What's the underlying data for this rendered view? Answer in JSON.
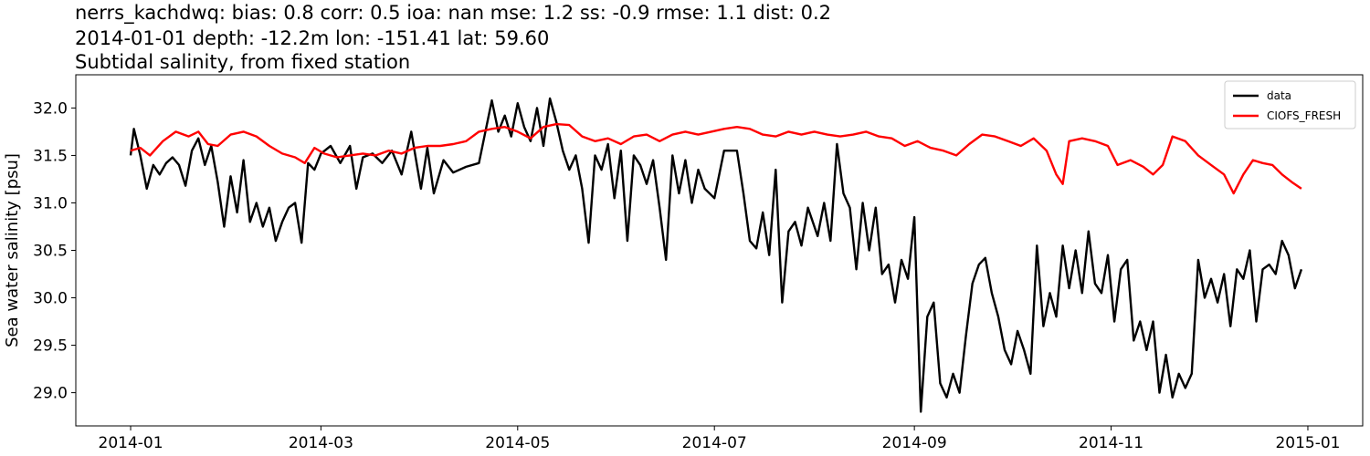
{
  "titles": {
    "line1": "nerrs_kachdwq: bias: 0.8  corr: 0.5  ioa: nan  mse: 1.2  ss: -0.9  rmse: 1.1  dist: 0.2",
    "line2": "2014-01-01 depth: -12.2m lon: -151.41 lat: 59.60",
    "line3": "Subtidal salinity, from fixed station"
  },
  "chart_data": {
    "type": "line",
    "title": "nerrs_kachdwq: bias: 0.8  corr: 0.5  ioa: nan  mse: 1.2  ss: -0.9  rmse: 1.1  dist: 0.2 / 2014-01-01 depth: -12.2m lon: -151.41 lat: 59.60 / Subtidal salinity, from fixed station",
    "xlabel": "",
    "ylabel": "Sea water salinity [psu]",
    "xlim": [
      "2013-12-15",
      "2015-01-18"
    ],
    "ylim": [
      28.65,
      32.35
    ],
    "x_ticks": [
      "2014-01",
      "2014-03",
      "2014-05",
      "2014-07",
      "2014-09",
      "2014-11",
      "2015-01"
    ],
    "y_ticks": [
      "29.0",
      "29.5",
      "30.0",
      "30.5",
      "31.0",
      "31.5",
      "32.0"
    ],
    "y_tick_values": [
      29.0,
      29.5,
      30.0,
      30.5,
      31.0,
      31.5,
      32.0
    ],
    "grid": false,
    "legend_position": "top-right",
    "series": [
      {
        "name": "data",
        "color": "#000000",
        "points": [
          [
            "2014-01-01",
            31.5
          ],
          [
            "2014-01-02",
            31.78
          ],
          [
            "2014-01-04",
            31.5
          ],
          [
            "2014-01-06",
            31.15
          ],
          [
            "2014-01-08",
            31.4
          ],
          [
            "2014-01-10",
            31.3
          ],
          [
            "2014-01-12",
            31.42
          ],
          [
            "2014-01-14",
            31.48
          ],
          [
            "2014-01-16",
            31.4
          ],
          [
            "2014-01-18",
            31.18
          ],
          [
            "2014-01-20",
            31.55
          ],
          [
            "2014-01-22",
            31.68
          ],
          [
            "2014-01-24",
            31.4
          ],
          [
            "2014-01-26",
            31.6
          ],
          [
            "2014-01-28",
            31.22
          ],
          [
            "2014-01-30",
            30.75
          ],
          [
            "2014-02-01",
            31.28
          ],
          [
            "2014-02-03",
            30.9
          ],
          [
            "2014-02-05",
            31.45
          ],
          [
            "2014-02-07",
            30.8
          ],
          [
            "2014-02-09",
            31.0
          ],
          [
            "2014-02-11",
            30.75
          ],
          [
            "2014-02-13",
            30.95
          ],
          [
            "2014-02-15",
            30.6
          ],
          [
            "2014-02-17",
            30.8
          ],
          [
            "2014-02-19",
            30.95
          ],
          [
            "2014-02-21",
            31.0
          ],
          [
            "2014-02-23",
            30.58
          ],
          [
            "2014-02-25",
            31.42
          ],
          [
            "2014-02-27",
            31.35
          ],
          [
            "2014-03-01",
            31.52
          ],
          [
            "2014-03-04",
            31.6
          ],
          [
            "2014-03-07",
            31.42
          ],
          [
            "2014-03-10",
            31.6
          ],
          [
            "2014-03-12",
            31.15
          ],
          [
            "2014-03-14",
            31.48
          ],
          [
            "2014-03-17",
            31.52
          ],
          [
            "2014-03-20",
            31.42
          ],
          [
            "2014-03-23",
            31.55
          ],
          [
            "2014-03-26",
            31.3
          ],
          [
            "2014-03-29",
            31.75
          ],
          [
            "2014-04-01",
            31.15
          ],
          [
            "2014-04-03",
            31.58
          ],
          [
            "2014-04-05",
            31.1
          ],
          [
            "2014-04-08",
            31.45
          ],
          [
            "2014-04-11",
            31.32
          ],
          [
            "2014-04-15",
            31.38
          ],
          [
            "2014-04-19",
            31.42
          ],
          [
            "2014-04-23",
            32.08
          ],
          [
            "2014-04-25",
            31.75
          ],
          [
            "2014-04-27",
            31.92
          ],
          [
            "2014-04-29",
            31.7
          ],
          [
            "2014-05-01",
            32.05
          ],
          [
            "2014-05-03",
            31.8
          ],
          [
            "2014-05-05",
            31.65
          ],
          [
            "2014-05-07",
            32.0
          ],
          [
            "2014-05-09",
            31.6
          ],
          [
            "2014-05-11",
            32.1
          ],
          [
            "2014-05-13",
            31.85
          ],
          [
            "2014-05-15",
            31.55
          ],
          [
            "2014-05-17",
            31.35
          ],
          [
            "2014-05-19",
            31.5
          ],
          [
            "2014-05-21",
            31.15
          ],
          [
            "2014-05-23",
            30.58
          ],
          [
            "2014-05-25",
            31.5
          ],
          [
            "2014-05-27",
            31.35
          ],
          [
            "2014-05-29",
            31.62
          ],
          [
            "2014-05-31",
            31.05
          ],
          [
            "2014-06-02",
            31.55
          ],
          [
            "2014-06-04",
            30.6
          ],
          [
            "2014-06-06",
            31.5
          ],
          [
            "2014-06-08",
            31.4
          ],
          [
            "2014-06-10",
            31.2
          ],
          [
            "2014-06-12",
            31.45
          ],
          [
            "2014-06-14",
            30.95
          ],
          [
            "2014-06-16",
            30.4
          ],
          [
            "2014-06-18",
            31.5
          ],
          [
            "2014-06-20",
            31.1
          ],
          [
            "2014-06-22",
            31.45
          ],
          [
            "2014-06-24",
            31.0
          ],
          [
            "2014-06-26",
            31.35
          ],
          [
            "2014-06-28",
            31.15
          ],
          [
            "2014-07-01",
            31.05
          ],
          [
            "2014-07-04",
            31.55
          ],
          [
            "2014-07-08",
            31.55
          ],
          [
            "2014-07-10",
            31.1
          ],
          [
            "2014-07-12",
            30.6
          ],
          [
            "2014-07-14",
            30.52
          ],
          [
            "2014-07-16",
            30.9
          ],
          [
            "2014-07-18",
            30.45
          ],
          [
            "2014-07-20",
            31.35
          ],
          [
            "2014-07-22",
            29.95
          ],
          [
            "2014-07-24",
            30.7
          ],
          [
            "2014-07-26",
            30.8
          ],
          [
            "2014-07-28",
            30.55
          ],
          [
            "2014-07-30",
            30.95
          ],
          [
            "2014-08-02",
            30.65
          ],
          [
            "2014-08-04",
            31.0
          ],
          [
            "2014-08-06",
            30.6
          ],
          [
            "2014-08-08",
            31.62
          ],
          [
            "2014-08-10",
            31.1
          ],
          [
            "2014-08-12",
            30.95
          ],
          [
            "2014-08-14",
            30.3
          ],
          [
            "2014-08-16",
            31.0
          ],
          [
            "2014-08-18",
            30.5
          ],
          [
            "2014-08-20",
            30.95
          ],
          [
            "2014-08-22",
            30.25
          ],
          [
            "2014-08-24",
            30.35
          ],
          [
            "2014-08-26",
            29.95
          ],
          [
            "2014-08-28",
            30.4
          ],
          [
            "2014-08-30",
            30.2
          ],
          [
            "2014-09-01",
            30.85
          ],
          [
            "2014-09-03",
            28.8
          ],
          [
            "2014-09-05",
            29.8
          ],
          [
            "2014-09-07",
            29.95
          ],
          [
            "2014-09-09",
            29.1
          ],
          [
            "2014-09-11",
            28.95
          ],
          [
            "2014-09-13",
            29.2
          ],
          [
            "2014-09-15",
            29.0
          ],
          [
            "2014-09-17",
            29.6
          ],
          [
            "2014-09-19",
            30.15
          ],
          [
            "2014-09-21",
            30.35
          ],
          [
            "2014-09-23",
            30.42
          ],
          [
            "2014-09-25",
            30.05
          ],
          [
            "2014-09-27",
            29.8
          ],
          [
            "2014-09-29",
            29.45
          ],
          [
            "2014-10-01",
            29.3
          ],
          [
            "2014-10-03",
            29.65
          ],
          [
            "2014-10-05",
            29.45
          ],
          [
            "2014-10-07",
            29.2
          ],
          [
            "2014-10-09",
            30.55
          ],
          [
            "2014-10-11",
            29.7
          ],
          [
            "2014-10-13",
            30.05
          ],
          [
            "2014-10-15",
            29.8
          ],
          [
            "2014-10-17",
            30.55
          ],
          [
            "2014-10-19",
            30.1
          ],
          [
            "2014-10-21",
            30.5
          ],
          [
            "2014-10-23",
            30.05
          ],
          [
            "2014-10-25",
            30.7
          ],
          [
            "2014-10-27",
            30.15
          ],
          [
            "2014-10-29",
            30.05
          ],
          [
            "2014-10-31",
            30.45
          ],
          [
            "2014-11-02",
            29.75
          ],
          [
            "2014-11-04",
            30.3
          ],
          [
            "2014-11-06",
            30.4
          ],
          [
            "2014-11-08",
            29.55
          ],
          [
            "2014-11-10",
            29.75
          ],
          [
            "2014-11-12",
            29.45
          ],
          [
            "2014-11-14",
            29.75
          ],
          [
            "2014-11-16",
            29.0
          ],
          [
            "2014-11-18",
            29.4
          ],
          [
            "2014-11-20",
            28.95
          ],
          [
            "2014-11-22",
            29.2
          ],
          [
            "2014-11-24",
            29.05
          ],
          [
            "2014-11-26",
            29.2
          ],
          [
            "2014-11-28",
            30.4
          ],
          [
            "2014-11-30",
            30.0
          ],
          [
            "2014-12-02",
            30.2
          ],
          [
            "2014-12-04",
            29.95
          ],
          [
            "2014-12-06",
            30.25
          ],
          [
            "2014-12-08",
            29.7
          ],
          [
            "2014-12-10",
            30.3
          ],
          [
            "2014-12-12",
            30.2
          ],
          [
            "2014-12-14",
            30.5
          ],
          [
            "2014-12-16",
            29.75
          ],
          [
            "2014-12-18",
            30.3
          ],
          [
            "2014-12-20",
            30.35
          ],
          [
            "2014-12-22",
            30.25
          ],
          [
            "2014-12-24",
            30.6
          ],
          [
            "2014-12-26",
            30.45
          ],
          [
            "2014-12-28",
            30.1
          ],
          [
            "2014-12-30",
            30.3
          ]
        ]
      },
      {
        "name": "CIOFS_FRESH",
        "color": "#ff0000",
        "points": [
          [
            "2014-01-01",
            31.55
          ],
          [
            "2014-01-04",
            31.58
          ],
          [
            "2014-01-07",
            31.5
          ],
          [
            "2014-01-11",
            31.65
          ],
          [
            "2014-01-15",
            31.75
          ],
          [
            "2014-01-19",
            31.7
          ],
          [
            "2014-01-22",
            31.75
          ],
          [
            "2014-01-25",
            31.62
          ],
          [
            "2014-01-28",
            31.6
          ],
          [
            "2014-02-01",
            31.72
          ],
          [
            "2014-02-05",
            31.75
          ],
          [
            "2014-02-09",
            31.7
          ],
          [
            "2014-02-13",
            31.6
          ],
          [
            "2014-02-17",
            31.52
          ],
          [
            "2014-02-21",
            31.48
          ],
          [
            "2014-02-24",
            31.42
          ],
          [
            "2014-02-27",
            31.58
          ],
          [
            "2014-03-02",
            31.52
          ],
          [
            "2014-03-06",
            31.48
          ],
          [
            "2014-03-10",
            31.5
          ],
          [
            "2014-03-14",
            31.52
          ],
          [
            "2014-03-18",
            31.5
          ],
          [
            "2014-03-22",
            31.55
          ],
          [
            "2014-03-26",
            31.52
          ],
          [
            "2014-03-30",
            31.58
          ],
          [
            "2014-04-03",
            31.6
          ],
          [
            "2014-04-07",
            31.6
          ],
          [
            "2014-04-11",
            31.62
          ],
          [
            "2014-04-15",
            31.65
          ],
          [
            "2014-04-19",
            31.75
          ],
          [
            "2014-04-23",
            31.78
          ],
          [
            "2014-04-27",
            31.8
          ],
          [
            "2014-05-01",
            31.75
          ],
          [
            "2014-05-05",
            31.68
          ],
          [
            "2014-05-09",
            31.8
          ],
          [
            "2014-05-13",
            31.83
          ],
          [
            "2014-05-17",
            31.82
          ],
          [
            "2014-05-21",
            31.7
          ],
          [
            "2014-05-25",
            31.65
          ],
          [
            "2014-05-29",
            31.68
          ],
          [
            "2014-06-02",
            31.62
          ],
          [
            "2014-06-06",
            31.7
          ],
          [
            "2014-06-10",
            31.72
          ],
          [
            "2014-06-14",
            31.65
          ],
          [
            "2014-06-18",
            31.72
          ],
          [
            "2014-06-22",
            31.75
          ],
          [
            "2014-06-26",
            31.72
          ],
          [
            "2014-06-30",
            31.75
          ],
          [
            "2014-07-04",
            31.78
          ],
          [
            "2014-07-08",
            31.8
          ],
          [
            "2014-07-12",
            31.78
          ],
          [
            "2014-07-16",
            31.72
          ],
          [
            "2014-07-20",
            31.7
          ],
          [
            "2014-07-24",
            31.75
          ],
          [
            "2014-07-28",
            31.72
          ],
          [
            "2014-08-01",
            31.75
          ],
          [
            "2014-08-05",
            31.72
          ],
          [
            "2014-08-09",
            31.7
          ],
          [
            "2014-08-13",
            31.72
          ],
          [
            "2014-08-17",
            31.75
          ],
          [
            "2014-08-21",
            31.7
          ],
          [
            "2014-08-25",
            31.68
          ],
          [
            "2014-08-29",
            31.6
          ],
          [
            "2014-09-02",
            31.65
          ],
          [
            "2014-09-06",
            31.58
          ],
          [
            "2014-09-10",
            31.55
          ],
          [
            "2014-09-14",
            31.5
          ],
          [
            "2014-09-18",
            31.62
          ],
          [
            "2014-09-22",
            31.72
          ],
          [
            "2014-09-26",
            31.7
          ],
          [
            "2014-09-30",
            31.65
          ],
          [
            "2014-10-04",
            31.6
          ],
          [
            "2014-10-08",
            31.68
          ],
          [
            "2014-10-12",
            31.55
          ],
          [
            "2014-10-15",
            31.3
          ],
          [
            "2014-10-17",
            31.2
          ],
          [
            "2014-10-19",
            31.65
          ],
          [
            "2014-10-23",
            31.68
          ],
          [
            "2014-10-27",
            31.65
          ],
          [
            "2014-10-31",
            31.6
          ],
          [
            "2014-11-03",
            31.4
          ],
          [
            "2014-11-07",
            31.45
          ],
          [
            "2014-11-11",
            31.38
          ],
          [
            "2014-11-14",
            31.3
          ],
          [
            "2014-11-17",
            31.4
          ],
          [
            "2014-11-20",
            31.7
          ],
          [
            "2014-11-24",
            31.65
          ],
          [
            "2014-11-28",
            31.5
          ],
          [
            "2014-12-02",
            31.4
          ],
          [
            "2014-12-06",
            31.3
          ],
          [
            "2014-12-09",
            31.1
          ],
          [
            "2014-12-12",
            31.3
          ],
          [
            "2014-12-15",
            31.45
          ],
          [
            "2014-12-18",
            31.42
          ],
          [
            "2014-12-21",
            31.4
          ],
          [
            "2014-12-24",
            31.3
          ],
          [
            "2014-12-27",
            31.22
          ],
          [
            "2014-12-30",
            31.15
          ]
        ]
      }
    ]
  }
}
